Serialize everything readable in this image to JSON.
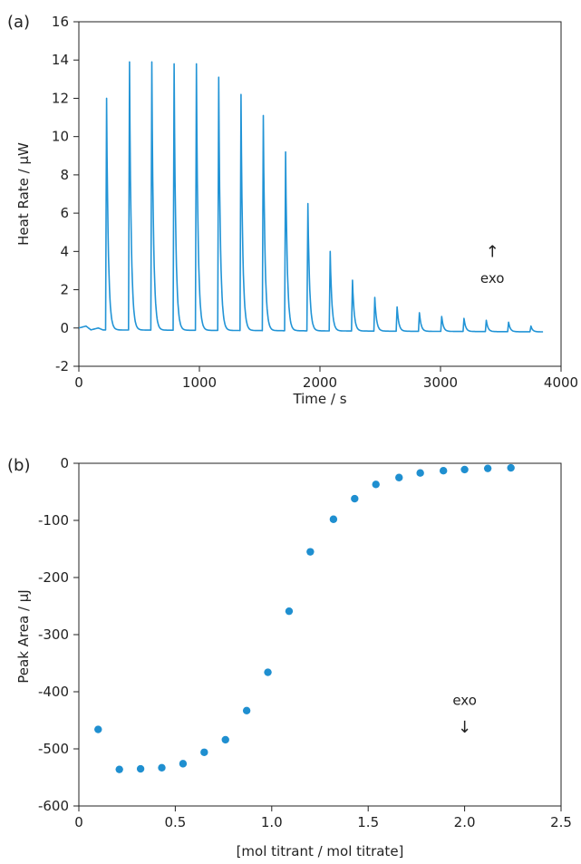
{
  "chart_data": [
    {
      "panel_label": "(a)",
      "type": "line",
      "xlabel": "Time / s",
      "ylabel": "Heat Rate / µW",
      "xlim": [
        0,
        4000
      ],
      "ylim": [
        -2,
        16
      ],
      "xticks": [
        0,
        1000,
        2000,
        3000,
        4000
      ],
      "yticks": [
        -2,
        0,
        2,
        4,
        6,
        8,
        10,
        12,
        14,
        16
      ],
      "color": "#2294d6",
      "annotation": {
        "arrow": "↑",
        "text": "exo",
        "x": 3430,
        "y_arrow": 4.0,
        "y_text": 2.6
      },
      "baseline": [
        [
          0,
          0.0
        ],
        [
          60,
          0.1
        ],
        [
          100,
          -0.1
        ],
        [
          160,
          0.0
        ],
        [
          200,
          -0.1
        ],
        [
          3850,
          -0.2
        ]
      ],
      "peaks": [
        {
          "x": 230,
          "y": 12.0
        },
        {
          "x": 420,
          "y": 13.9
        },
        {
          "x": 605,
          "y": 13.9
        },
        {
          "x": 790,
          "y": 13.8
        },
        {
          "x": 975,
          "y": 13.8
        },
        {
          "x": 1160,
          "y": 13.1
        },
        {
          "x": 1345,
          "y": 12.2
        },
        {
          "x": 1530,
          "y": 11.1
        },
        {
          "x": 1715,
          "y": 9.2
        },
        {
          "x": 1900,
          "y": 6.5
        },
        {
          "x": 2085,
          "y": 4.0
        },
        {
          "x": 2270,
          "y": 2.5
        },
        {
          "x": 2455,
          "y": 1.6
        },
        {
          "x": 2640,
          "y": 1.1
        },
        {
          "x": 2825,
          "y": 0.8
        },
        {
          "x": 3010,
          "y": 0.6
        },
        {
          "x": 3195,
          "y": 0.5
        },
        {
          "x": 3380,
          "y": 0.4
        },
        {
          "x": 3565,
          "y": 0.3
        },
        {
          "x": 3750,
          "y": 0.1
        }
      ]
    },
    {
      "panel_label": "(b)",
      "type": "scatter",
      "xlabel": "[mol titrant / mol titrate]",
      "ylabel": "Peak Area / µJ",
      "xlim": [
        0,
        2.5
      ],
      "ylim": [
        -600,
        0
      ],
      "xticks": [
        0,
        0.5,
        1.0,
        1.5,
        2.0,
        2.5
      ],
      "xtick_labels": [
        "0",
        "0.5",
        "1.0",
        "1.5",
        "2.0",
        "2.5"
      ],
      "yticks": [
        -600,
        -500,
        -400,
        -300,
        -200,
        -100,
        0
      ],
      "color": "#1f8fd0",
      "annotation": {
        "arrow": "↓",
        "text": "exo",
        "x": 2.0,
        "y_arrow": -462,
        "y_text": -415
      },
      "points": [
        [
          0.1,
          -466
        ],
        [
          0.21,
          -536
        ],
        [
          0.32,
          -535
        ],
        [
          0.43,
          -533
        ],
        [
          0.54,
          -526
        ],
        [
          0.65,
          -506
        ],
        [
          0.76,
          -484
        ],
        [
          0.87,
          -433
        ],
        [
          0.98,
          -366
        ],
        [
          1.09,
          -259
        ],
        [
          1.2,
          -155
        ],
        [
          1.32,
          -98
        ],
        [
          1.43,
          -62
        ],
        [
          1.54,
          -37
        ],
        [
          1.66,
          -25
        ],
        [
          1.77,
          -17
        ],
        [
          1.89,
          -13
        ],
        [
          2.0,
          -11
        ],
        [
          2.12,
          -9
        ],
        [
          2.24,
          -8
        ]
      ]
    }
  ]
}
